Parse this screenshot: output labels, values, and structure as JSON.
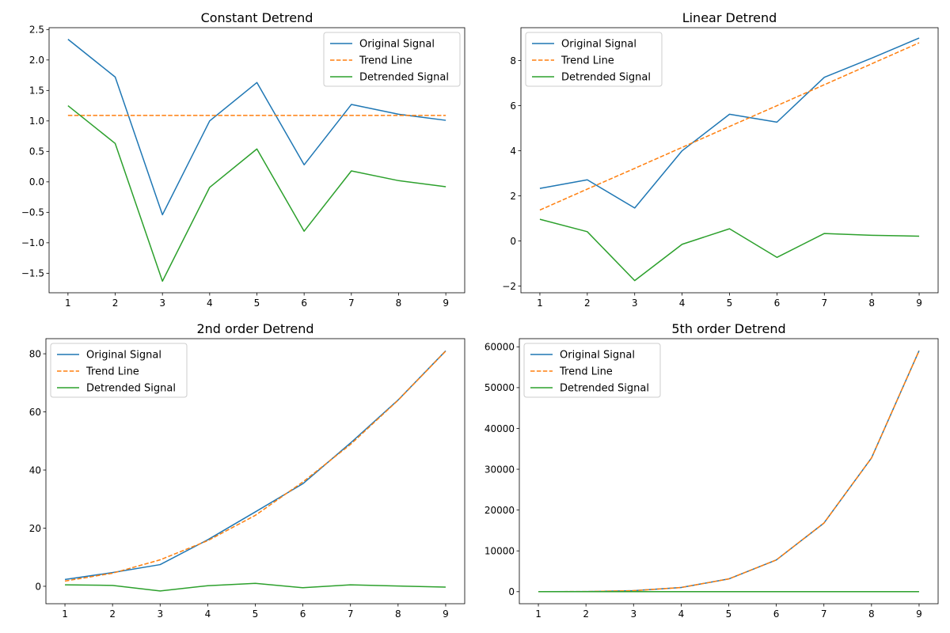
{
  "colors": {
    "original": "#1f77b4",
    "trend": "#ff7f0e",
    "detrended": "#2ca02c"
  },
  "chart_data": [
    {
      "type": "line",
      "title": "Constant Detrend",
      "x": [
        1,
        2,
        3,
        4,
        5,
        6,
        7,
        8,
        9
      ],
      "xticks": [
        1,
        2,
        3,
        4,
        5,
        6,
        7,
        8,
        9
      ],
      "yticks": [
        -1.5,
        -1.0,
        -0.5,
        0.0,
        0.5,
        1.0,
        1.5,
        2.0,
        2.5
      ],
      "ytick_labels": [
        "−1.5",
        "−1.0",
        "−0.5",
        "0.0",
        "0.5",
        "1.0",
        "1.5",
        "2.0",
        "2.5"
      ],
      "xlim": [
        0.6,
        9.4
      ],
      "ylim": [
        -1.82,
        2.53
      ],
      "legend": "top-right",
      "grid": false,
      "series": [
        {
          "name": "Original Signal",
          "style": "solid",
          "color": "#1f77b4",
          "values": [
            2.34,
            1.72,
            -0.54,
            1.0,
            1.63,
            0.28,
            1.27,
            1.11,
            1.01
          ]
        },
        {
          "name": "Trend Line",
          "style": "dashed",
          "color": "#ff7f0e",
          "values": [
            1.09,
            1.09,
            1.09,
            1.09,
            1.09,
            1.09,
            1.09,
            1.09,
            1.09
          ]
        },
        {
          "name": "Detrended Signal",
          "style": "solid",
          "color": "#2ca02c",
          "values": [
            1.25,
            0.63,
            -1.63,
            -0.09,
            0.54,
            -0.81,
            0.18,
            0.02,
            -0.08
          ]
        }
      ]
    },
    {
      "type": "line",
      "title": "Linear Detrend",
      "x": [
        1,
        2,
        3,
        4,
        5,
        6,
        7,
        8,
        9
      ],
      "xticks": [
        1,
        2,
        3,
        4,
        5,
        6,
        7,
        8,
        9
      ],
      "yticks": [
        -2,
        0,
        2,
        4,
        6,
        8
      ],
      "ytick_labels": [
        "−2",
        "0",
        "2",
        "4",
        "6",
        "8"
      ],
      "xlim": [
        0.6,
        9.4
      ],
      "ylim": [
        -2.3,
        9.46
      ],
      "legend": "top-left",
      "grid": false,
      "series": [
        {
          "name": "Original Signal",
          "style": "solid",
          "color": "#1f77b4",
          "values": [
            2.33,
            2.71,
            1.46,
            4.0,
            5.62,
            5.27,
            7.26,
            8.11,
            9.0
          ]
        },
        {
          "name": "Trend Line",
          "style": "dashed",
          "color": "#ff7f0e",
          "values": [
            1.37,
            2.3,
            3.22,
            4.15,
            5.08,
            6.0,
            6.93,
            7.86,
            8.79
          ]
        },
        {
          "name": "Detrended Signal",
          "style": "solid",
          "color": "#2ca02c",
          "values": [
            0.96,
            0.41,
            -1.76,
            -0.15,
            0.54,
            -0.73,
            0.33,
            0.25,
            0.21
          ]
        }
      ]
    },
    {
      "type": "line",
      "title": "2nd order Detrend",
      "x": [
        1,
        2,
        3,
        4,
        5,
        6,
        7,
        8,
        9
      ],
      "xticks": [
        1,
        2,
        3,
        4,
        5,
        6,
        7,
        8,
        9
      ],
      "yticks": [
        0,
        20,
        40,
        60,
        80
      ],
      "ytick_labels": [
        "0",
        "20",
        "40",
        "60",
        "80"
      ],
      "xlim": [
        0.6,
        9.4
      ],
      "ylim": [
        -6.0,
        85.2
      ],
      "legend": "top-left",
      "grid": false,
      "series": [
        {
          "name": "Original Signal",
          "style": "solid",
          "color": "#1f77b4",
          "values": [
            2.33,
            4.72,
            7.46,
            16.0,
            25.6,
            35.3,
            49.3,
            64.1,
            81.0
          ]
        },
        {
          "name": "Trend Line",
          "style": "dashed",
          "color": "#ff7f0e",
          "values": [
            1.8,
            4.5,
            9.1,
            15.7,
            24.4,
            35.9,
            48.8,
            64.0,
            80.9
          ]
        },
        {
          "name": "Detrended Signal",
          "style": "solid",
          "color": "#2ca02c",
          "values": [
            0.5,
            0.3,
            -1.6,
            0.2,
            1.0,
            -0.5,
            0.5,
            0.1,
            -0.3
          ]
        }
      ]
    },
    {
      "type": "line",
      "title": "5th order Detrend",
      "x": [
        1,
        2,
        3,
        4,
        5,
        6,
        7,
        8,
        9
      ],
      "xticks": [
        1,
        2,
        3,
        4,
        5,
        6,
        7,
        8,
        9
      ],
      "yticks": [
        0,
        10000,
        20000,
        30000,
        40000,
        50000,
        60000
      ],
      "ytick_labels": [
        "0",
        "10000",
        "20000",
        "30000",
        "40000",
        "50000",
        "60000"
      ],
      "xlim": [
        0.6,
        9.4
      ],
      "ylim": [
        -2950,
        62000
      ],
      "legend": "top-left",
      "grid": false,
      "series": [
        {
          "name": "Original Signal",
          "style": "solid",
          "color": "#1f77b4",
          "values": [
            1,
            32,
            243,
            1024,
            3125,
            7776,
            16807,
            32768,
            59049
          ]
        },
        {
          "name": "Trend Line",
          "style": "dashed",
          "color": "#ff7f0e",
          "values": [
            1,
            32,
            243,
            1024,
            3125,
            7776,
            16807,
            32768,
            59049
          ]
        },
        {
          "name": "Detrended Signal",
          "style": "solid",
          "color": "#2ca02c",
          "values": [
            0,
            0,
            0,
            0,
            0,
            0,
            0,
            0,
            0
          ]
        }
      ]
    }
  ]
}
